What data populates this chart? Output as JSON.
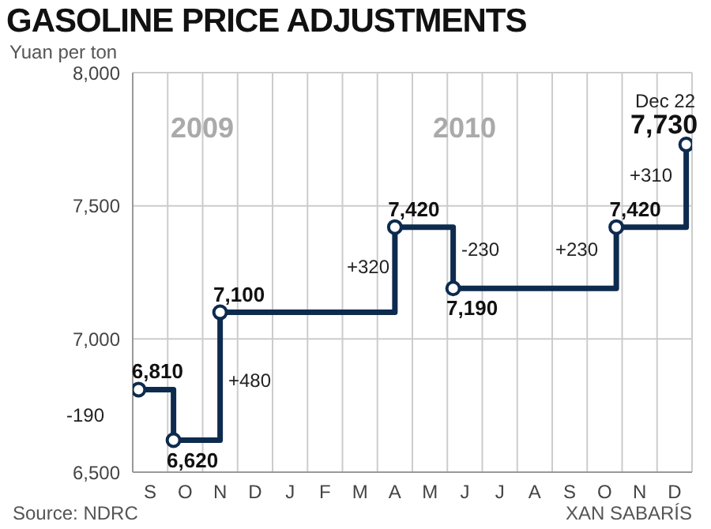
{
  "chart_data": {
    "type": "step",
    "title": "GASOLINE PRICE ADJUSTMENTS",
    "subtitle": "Yuan per ton",
    "categories": [
      null,
      "S",
      null,
      null,
      "O",
      null,
      null,
      "N",
      null,
      null,
      "D",
      null,
      null,
      "J",
      null,
      null,
      "F",
      null,
      null,
      "M",
      null,
      null,
      "A",
      null,
      null,
      "M",
      null,
      null,
      "J",
      null,
      null,
      "J",
      null,
      null,
      "A",
      null,
      null,
      "S",
      null,
      null,
      "O",
      null,
      null,
      "N",
      null,
      null,
      "D",
      null
    ],
    "series": [
      {
        "color": "#0d2b4e",
        "values": [
          6810,
          null,
          null,
          6620,
          null,
          null,
          null,
          7100,
          null,
          null,
          null,
          null,
          null,
          null,
          null,
          null,
          null,
          null,
          null,
          null,
          null,
          null,
          7420,
          null,
          null,
          null,
          null,
          7190,
          null,
          null,
          null,
          null,
          null,
          null,
          null,
          null,
          null,
          null,
          null,
          null,
          null,
          7420,
          null,
          null,
          null,
          null,
          null,
          7730
        ],
        "value_labels": [
          "6,810",
          null,
          null,
          "6,620",
          null,
          null,
          null,
          "7,100",
          null,
          null,
          null,
          null,
          null,
          null,
          null,
          null,
          null,
          null,
          null,
          null,
          null,
          null,
          "7,420",
          null,
          null,
          null,
          null,
          "7,190",
          null,
          null,
          null,
          null,
          null,
          null,
          null,
          null,
          null,
          null,
          null,
          null,
          null,
          "7,420",
          null,
          null,
          null,
          null,
          null,
          "7,730"
        ]
      }
    ],
    "marker": "circle",
    "grid": true,
    "ylim": [
      6500,
      8000
    ],
    "yticks": [
      {
        "value": 6500,
        "label": "6,500"
      },
      {
        "value": 7000,
        "label": "7,000"
      },
      {
        "value": 7500,
        "label": "7,500"
      },
      {
        "value": 8000,
        "label": "8,000"
      }
    ],
    "annotations": [
      "2009",
      "2010",
      "-190",
      "+480",
      "+320",
      "-230",
      "+230",
      "+310",
      "Dec 22",
      "Source: NDRC",
      "XAN SABARÍS"
    ]
  }
}
